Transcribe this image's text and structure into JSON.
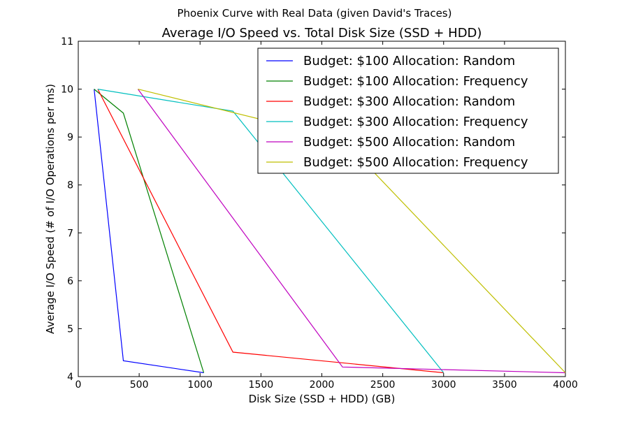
{
  "figure": {
    "suptitle": "Phoenix Curve with Real Data (given David's Traces)"
  },
  "chart_data": {
    "type": "line",
    "title": "Average I/O Speed vs. Total Disk Size (SSD + HDD)",
    "xlabel": "Disk Size (SSD + HDD) (GB)",
    "ylabel": "Average I/O Speed (# of I/O Operations per ms)",
    "xlim": [
      0,
      4000
    ],
    "ylim": [
      4,
      11
    ],
    "xticks": [
      0,
      500,
      1000,
      1500,
      2000,
      2500,
      3000,
      3500,
      4000
    ],
    "yticks": [
      4,
      5,
      6,
      7,
      8,
      9,
      10,
      11
    ],
    "grid": false,
    "legend_position": "top-right",
    "series": [
      {
        "name": "Budget: $100 Allocation: Random",
        "color": "#0000ff",
        "x": [
          130,
          370,
          1030
        ],
        "y": [
          10,
          4.33,
          4.08
        ]
      },
      {
        "name": "Budget: $100 Allocation: Frequency",
        "color": "#008000",
        "x": [
          130,
          370,
          1030
        ],
        "y": [
          10,
          9.5,
          4.08
        ]
      },
      {
        "name": "Budget: $300 Allocation: Random",
        "color": "#ff0000",
        "x": [
          160,
          1270,
          3000
        ],
        "y": [
          10,
          4.51,
          4.08
        ]
      },
      {
        "name": "Budget: $300 Allocation: Frequency",
        "color": "#00bfbf",
        "x": [
          160,
          1270,
          3000
        ],
        "y": [
          10,
          9.54,
          4.08
        ]
      },
      {
        "name": "Budget: $500 Allocation: Random",
        "color": "#bf00bf",
        "x": [
          490,
          2170,
          4000
        ],
        "y": [
          10,
          4.2,
          4.08
        ]
      },
      {
        "name": "Budget: $500 Allocation: Frequency",
        "color": "#bfbf00",
        "x": [
          490,
          2170,
          4000
        ],
        "y": [
          10,
          8.95,
          4.08
        ]
      }
    ]
  }
}
